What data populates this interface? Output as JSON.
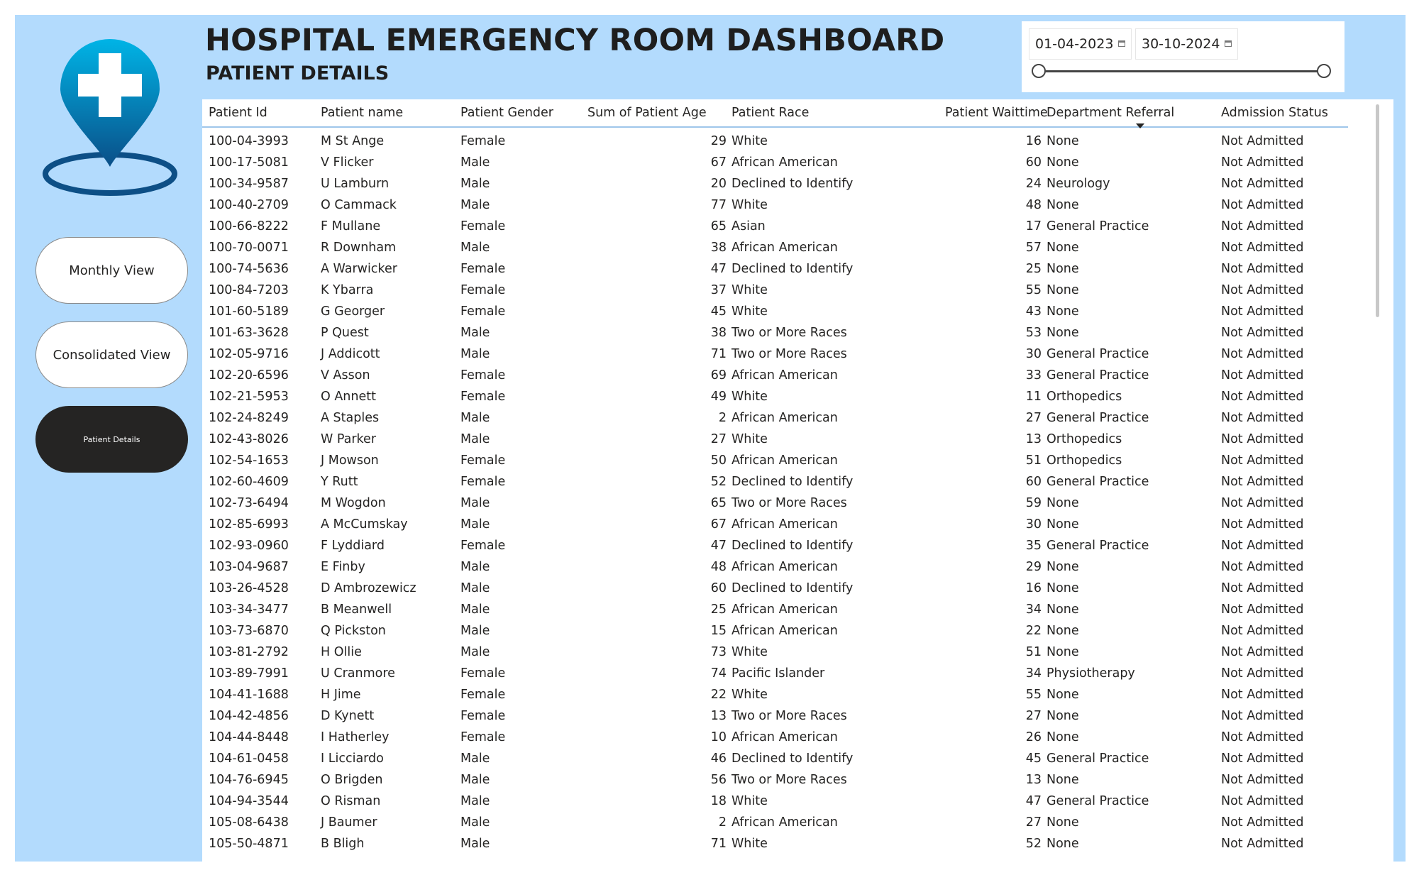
{
  "header": {
    "title": "HOSPITAL EMERGENCY ROOM DASHBOARD",
    "subtitle": "PATIENT DETAILS"
  },
  "nav": {
    "monthly": "Monthly View",
    "consolidated": "Consolidated View",
    "patient_details": "Patient Details"
  },
  "date_slicer": {
    "start": "01-04-2023",
    "end": "30-10-2024"
  },
  "colors": {
    "canvas": "#b3dbfd",
    "logo_top": "#00b4e6",
    "logo_bottom": "#0a4f88",
    "active_button": "#252423"
  },
  "table": {
    "columns": [
      "Patient Id",
      "Patient name",
      "Patient Gender",
      "Sum of Patient Age",
      "Patient Race",
      "Patient Waittime",
      "Department Referral",
      "Admission Status"
    ],
    "sorted_column": "Admission Status",
    "rows": [
      [
        "100-04-3993",
        "M St Ange",
        "Female",
        "29",
        "White",
        "16",
        "None",
        "Not Admitted"
      ],
      [
        "100-17-5081",
        "V Flicker",
        "Male",
        "67",
        "African American",
        "60",
        "None",
        "Not Admitted"
      ],
      [
        "100-34-9587",
        "U Lamburn",
        "Male",
        "20",
        "Declined to Identify",
        "24",
        "Neurology",
        "Not Admitted"
      ],
      [
        "100-40-2709",
        "O Cammack",
        "Male",
        "77",
        "White",
        "48",
        "None",
        "Not Admitted"
      ],
      [
        "100-66-8222",
        "F Mullane",
        "Female",
        "65",
        "Asian",
        "17",
        "General Practice",
        "Not Admitted"
      ],
      [
        "100-70-0071",
        "R Downham",
        "Male",
        "38",
        "African American",
        "57",
        "None",
        "Not Admitted"
      ],
      [
        "100-74-5636",
        "A Warwicker",
        "Female",
        "47",
        "Declined to Identify",
        "25",
        "None",
        "Not Admitted"
      ],
      [
        "100-84-7203",
        "K Ybarra",
        "Female",
        "37",
        "White",
        "55",
        "None",
        "Not Admitted"
      ],
      [
        "101-60-5189",
        "G Georger",
        "Female",
        "45",
        "White",
        "43",
        "None",
        "Not Admitted"
      ],
      [
        "101-63-3628",
        "P Quest",
        "Male",
        "38",
        "Two or More Races",
        "53",
        "None",
        "Not Admitted"
      ],
      [
        "102-05-9716",
        "J Addicott",
        "Male",
        "71",
        "Two or More Races",
        "30",
        "General Practice",
        "Not Admitted"
      ],
      [
        "102-20-6596",
        "V Asson",
        "Female",
        "69",
        "African American",
        "33",
        "General Practice",
        "Not Admitted"
      ],
      [
        "102-21-5953",
        "O Annett",
        "Female",
        "49",
        "White",
        "11",
        "Orthopedics",
        "Not Admitted"
      ],
      [
        "102-24-8249",
        "A Staples",
        "Male",
        "2",
        "African American",
        "27",
        "General Practice",
        "Not Admitted"
      ],
      [
        "102-43-8026",
        "W Parker",
        "Male",
        "27",
        "White",
        "13",
        "Orthopedics",
        "Not Admitted"
      ],
      [
        "102-54-1653",
        "J Mowson",
        "Female",
        "50",
        "African American",
        "51",
        "Orthopedics",
        "Not Admitted"
      ],
      [
        "102-60-4609",
        "Y Rutt",
        "Female",
        "52",
        "Declined to Identify",
        "60",
        "General Practice",
        "Not Admitted"
      ],
      [
        "102-73-6494",
        "M Wogdon",
        "Male",
        "65",
        "Two or More Races",
        "59",
        "None",
        "Not Admitted"
      ],
      [
        "102-85-6993",
        "A McCumskay",
        "Male",
        "67",
        "African American",
        "30",
        "None",
        "Not Admitted"
      ],
      [
        "102-93-0960",
        "F Lyddiard",
        "Female",
        "47",
        "Declined to Identify",
        "35",
        "General Practice",
        "Not Admitted"
      ],
      [
        "103-04-9687",
        "E Finby",
        "Male",
        "48",
        "African American",
        "29",
        "None",
        "Not Admitted"
      ],
      [
        "103-26-4528",
        "D Ambrozewicz",
        "Male",
        "60",
        "Declined to Identify",
        "16",
        "None",
        "Not Admitted"
      ],
      [
        "103-34-3477",
        "B Meanwell",
        "Male",
        "25",
        "African American",
        "34",
        "None",
        "Not Admitted"
      ],
      [
        "103-73-6870",
        "Q Pickston",
        "Male",
        "15",
        "African American",
        "22",
        "None",
        "Not Admitted"
      ],
      [
        "103-81-2792",
        "H Ollie",
        "Male",
        "73",
        "White",
        "51",
        "None",
        "Not Admitted"
      ],
      [
        "103-89-7991",
        "U Cranmore",
        "Female",
        "74",
        "Pacific Islander",
        "34",
        "Physiotherapy",
        "Not Admitted"
      ],
      [
        "104-41-1688",
        "H Jime",
        "Female",
        "22",
        "White",
        "55",
        "None",
        "Not Admitted"
      ],
      [
        "104-42-4856",
        "D Kynett",
        "Female",
        "13",
        "Two or More Races",
        "27",
        "None",
        "Not Admitted"
      ],
      [
        "104-44-8448",
        "I Hatherley",
        "Female",
        "10",
        "African American",
        "26",
        "None",
        "Not Admitted"
      ],
      [
        "104-61-0458",
        "I Licciardo",
        "Male",
        "46",
        "Declined to Identify",
        "45",
        "General Practice",
        "Not Admitted"
      ],
      [
        "104-76-6945",
        "O Brigden",
        "Male",
        "56",
        "Two or More Races",
        "13",
        "None",
        "Not Admitted"
      ],
      [
        "104-94-3544",
        "O Risman",
        "Male",
        "18",
        "White",
        "47",
        "General Practice",
        "Not Admitted"
      ],
      [
        "105-08-6438",
        "J Baumer",
        "Male",
        "2",
        "African American",
        "27",
        "None",
        "Not Admitted"
      ],
      [
        "105-50-4871",
        "B Bligh",
        "Male",
        "71",
        "White",
        "52",
        "None",
        "Not Admitted"
      ]
    ]
  }
}
